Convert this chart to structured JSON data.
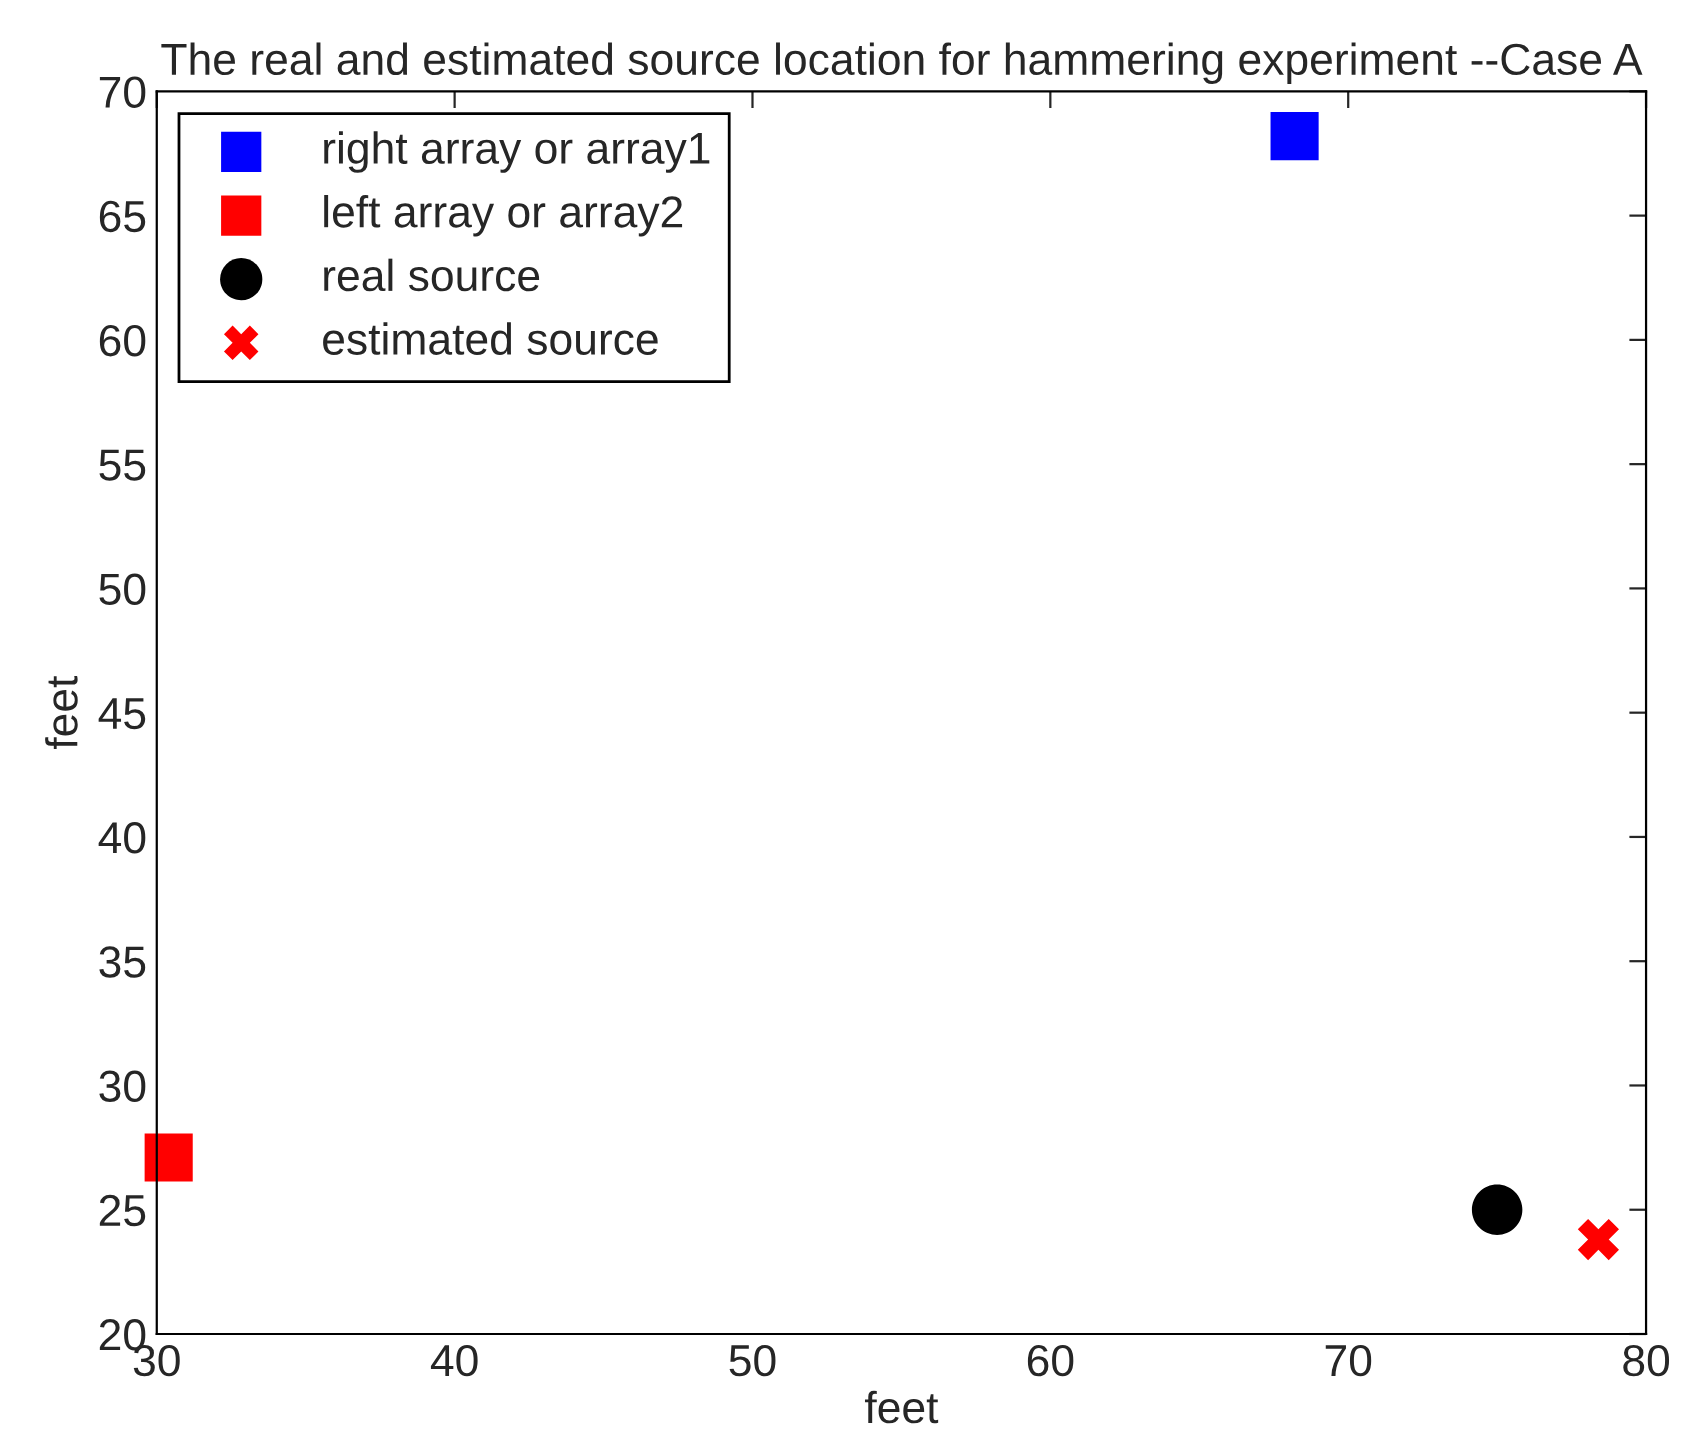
{
  "chart_data": {
    "type": "scatter",
    "title": "The real and estimated source location for hammering experiment --Case A",
    "xlabel": "feet",
    "ylabel": "feet",
    "xlim": [
      30,
      80
    ],
    "xticks": [
      30,
      40,
      50,
      60,
      70,
      80
    ],
    "ylim": [
      20,
      70
    ],
    "yticks": [
      20,
      25,
      30,
      35,
      40,
      45,
      50,
      55,
      60,
      65,
      70
    ],
    "grid": false,
    "legend": "top left",
    "series": [
      {
        "name": "right array or array1",
        "color": "#0000ff",
        "marker": "square",
        "x": [
          68.2
        ],
        "values": [
          68.2
        ]
      },
      {
        "name": "left array or array2",
        "color": "#ff0000",
        "marker": "square",
        "x": [
          30.4
        ],
        "values": [
          27.1
        ]
      },
      {
        "name": "real source",
        "color": "#000000",
        "marker": "circle",
        "x": [
          75.0
        ],
        "values": [
          25.0
        ]
      },
      {
        "name": "estimated source",
        "color": "#ff0000",
        "marker": "cross",
        "x": [
          78.4
        ],
        "values": [
          23.8
        ]
      }
    ]
  }
}
